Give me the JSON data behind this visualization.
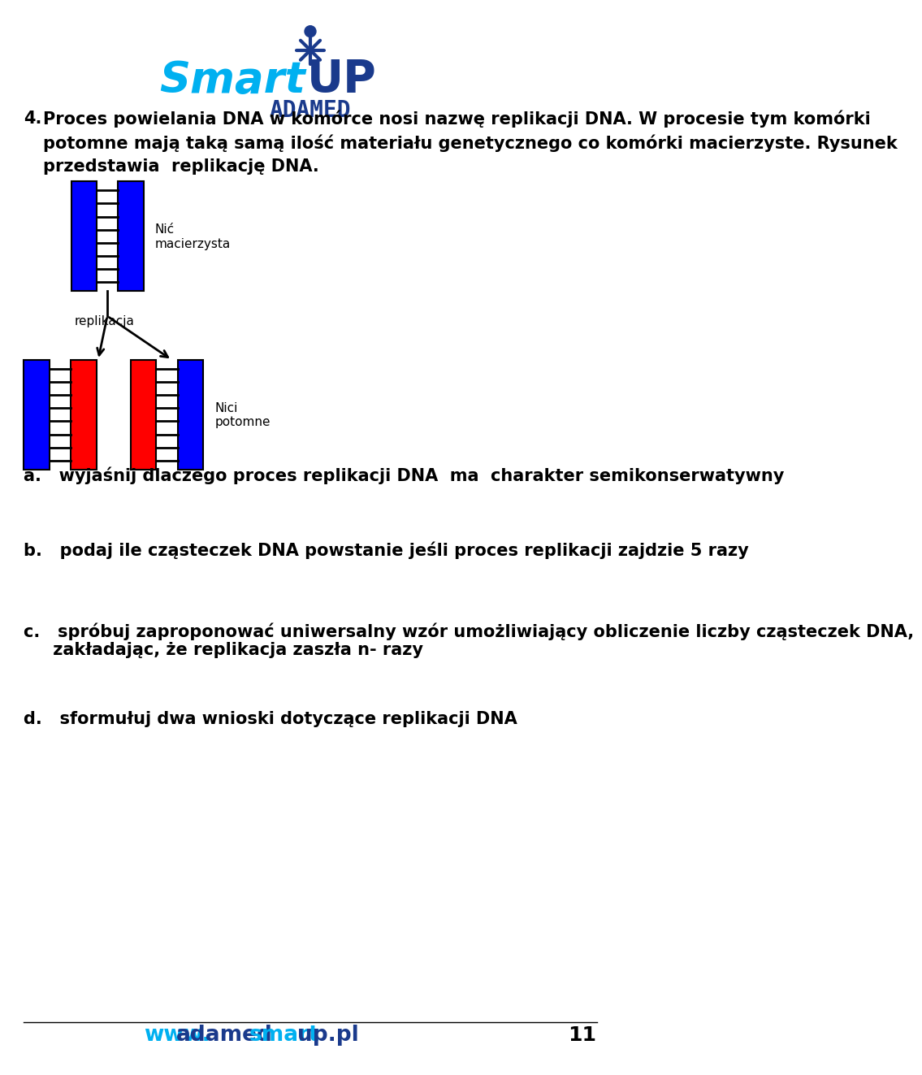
{
  "background_color": "#ffffff",
  "title_text_4": "4.",
  "title_text_main": " Proces powielania DNA w komórce nosi nazwę replikacji DNA. W procesie tym komórki\n potomne mają taką samą ilość materiału genetycznego co komórki macierzyste. Rysunek\n przedstawia  replikację DNA.",
  "question_a": "a.   wyjaśnij dlaczego proces replikacji DNA  ma  charakter semikonserwatywny",
  "question_b": "b.   podaj ile cząsteczek DNA powstanie jeśli proces replikacji zajdzie 5 razy",
  "question_c1": "c.   spróbuj zaproponować uniwersalny wzór umożliwiający obliczenie liczby cząsteczek DNA,",
  "question_c2": "     zakładając, że replikacja zaszła n- razy",
  "question_d": "d.   sformułuj dwa wnioski dotyczące replikacji DNA",
  "footer_number": "11",
  "label_macierzysta": "Nić\nmacierzysta",
  "label_replikacja": "replikacja",
  "label_potomne": "Nici\npotomne",
  "blue_color": "#0000ff",
  "red_color": "#ff0000",
  "line_color": "#000000",
  "logo_smart_color": "#00b0f0",
  "logo_up_color": "#1a3a8c",
  "logo_adamed_color": "#1a3a8c",
  "footer_smart_color": "#00b0f0",
  "footer_adamed_color": "#1a3a8c"
}
